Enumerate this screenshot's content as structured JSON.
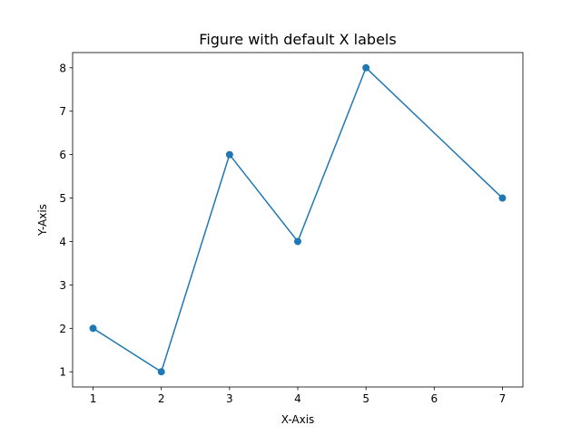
{
  "chart_data": {
    "type": "line",
    "title": "Figure with default X labels",
    "xlabel": "X-Axis",
    "ylabel": "Y-Axis",
    "x": [
      1,
      2,
      3,
      4,
      5,
      7
    ],
    "series": [
      {
        "values": [
          2,
          1,
          6,
          4,
          8,
          5
        ],
        "color": "#1f77b4",
        "marker": "circle"
      }
    ],
    "xlim": [
      0.7,
      7.3
    ],
    "ylim": [
      0.65,
      8.35
    ],
    "xticks": [
      1,
      2,
      3,
      4,
      5,
      6,
      7
    ],
    "yticks": [
      1,
      2,
      3,
      4,
      5,
      6,
      7,
      8
    ],
    "grid": false,
    "legend": "none"
  }
}
